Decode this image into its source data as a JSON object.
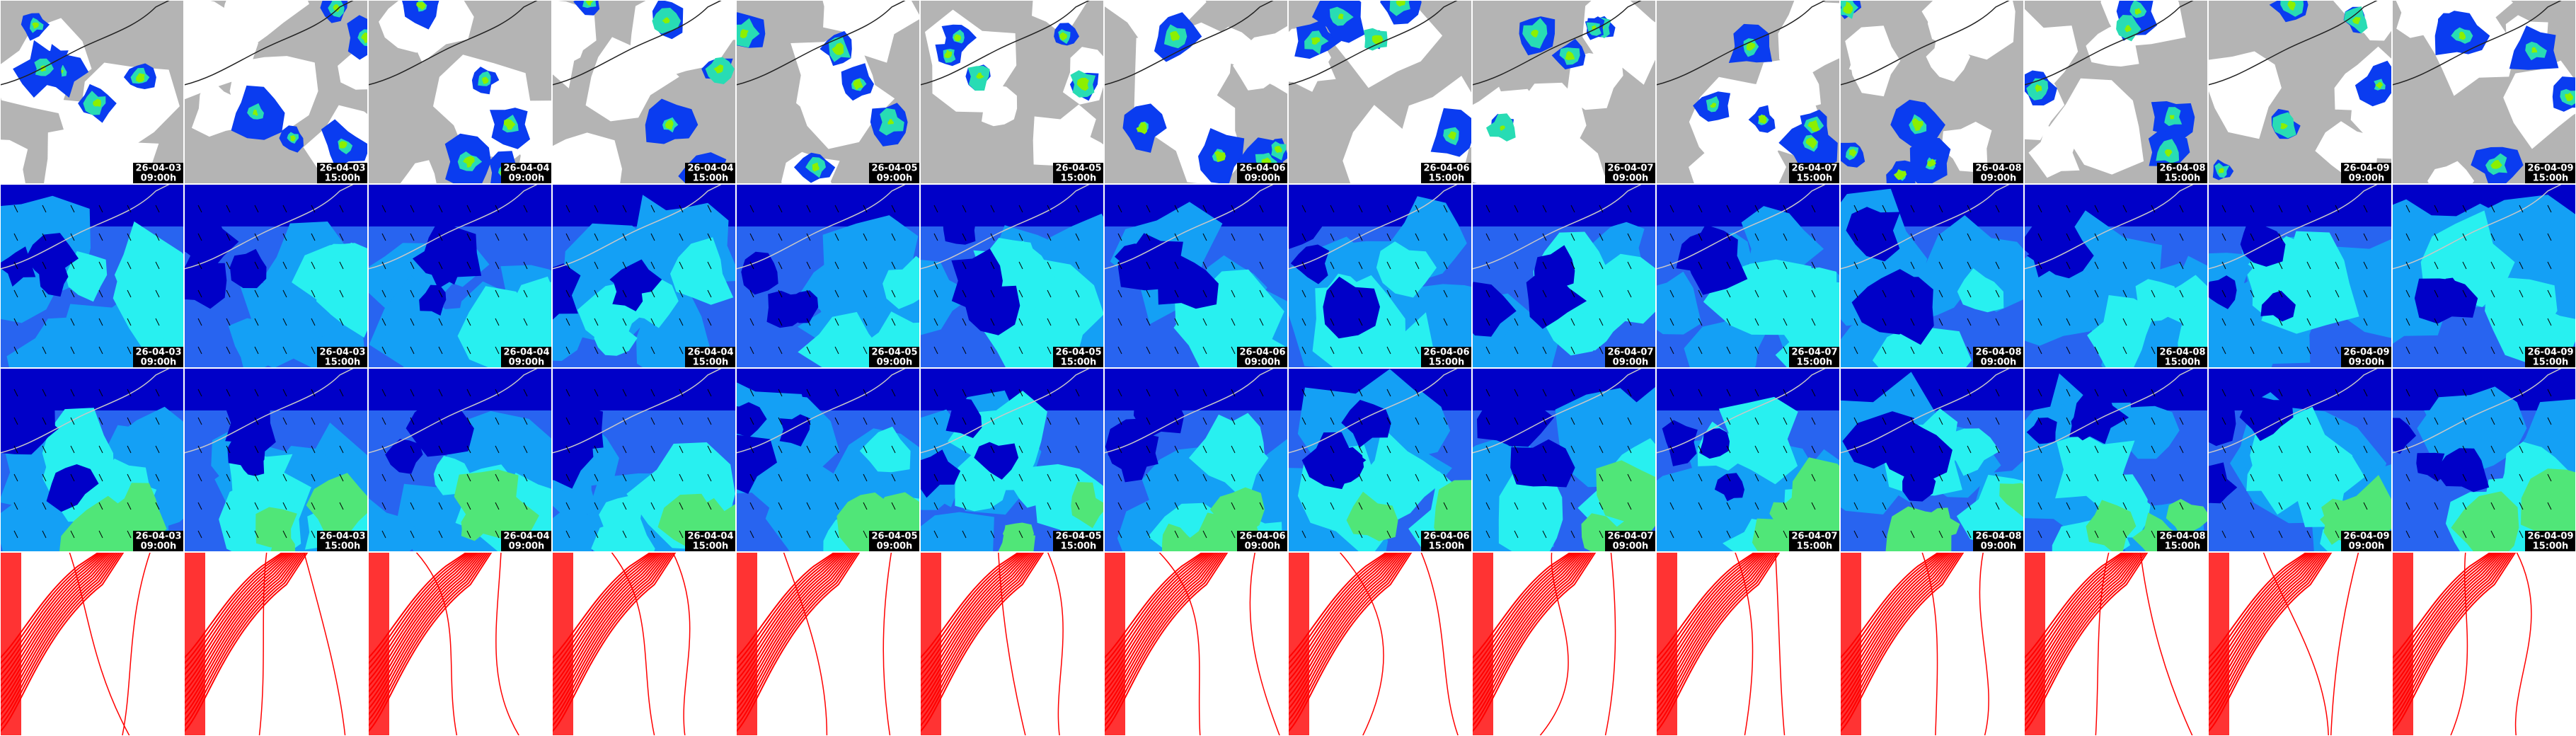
{
  "tiles": {
    "dates": [
      "26-04-03",
      "26-04-03",
      "26-04-04",
      "26-04-04",
      "26-04-05",
      "26-04-05",
      "26-04-06",
      "26-04-06",
      "26-04-07",
      "26-04-07",
      "26-04-08",
      "26-04-08",
      "26-04-09",
      "26-04-09"
    ],
    "times": [
      "09:00h",
      "15:00h",
      "09:00h",
      "15:00h",
      "09:00h",
      "15:00h",
      "09:00h",
      "15:00h",
      "09:00h",
      "15:00h",
      "09:00h",
      "15:00h",
      "09:00h",
      "15:00h"
    ]
  }
}
